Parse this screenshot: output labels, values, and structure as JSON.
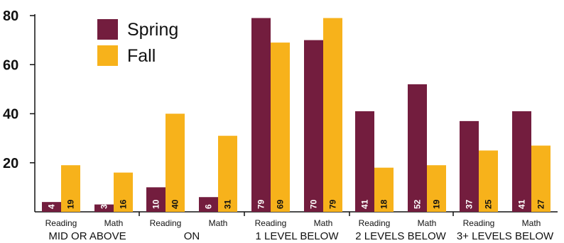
{
  "chart_data": {
    "type": "bar",
    "title": "",
    "xlabel": "",
    "ylabel": "",
    "ylim": [
      0,
      80
    ],
    "yticks": [
      20,
      40,
      60,
      80
    ],
    "grid": false,
    "legend_position": "top-left",
    "groups": [
      "MID OR ABOVE",
      "ON",
      "1 LEVEL BELOW",
      "2 LEVELS BELOW",
      "3+ LEVELS BELOW"
    ],
    "subcategories": [
      "Reading",
      "Math"
    ],
    "series": [
      {
        "name": "Spring",
        "color": "#731d3e",
        "label_color": "#ffffff",
        "values": [
          4,
          3,
          10,
          6,
          79,
          70,
          41,
          52,
          37,
          41
        ]
      },
      {
        "name": "Fall",
        "color": "#f7b21b",
        "label_color": "#111111",
        "values": [
          19,
          16,
          40,
          31,
          69,
          79,
          18,
          19,
          25,
          27
        ]
      }
    ]
  }
}
